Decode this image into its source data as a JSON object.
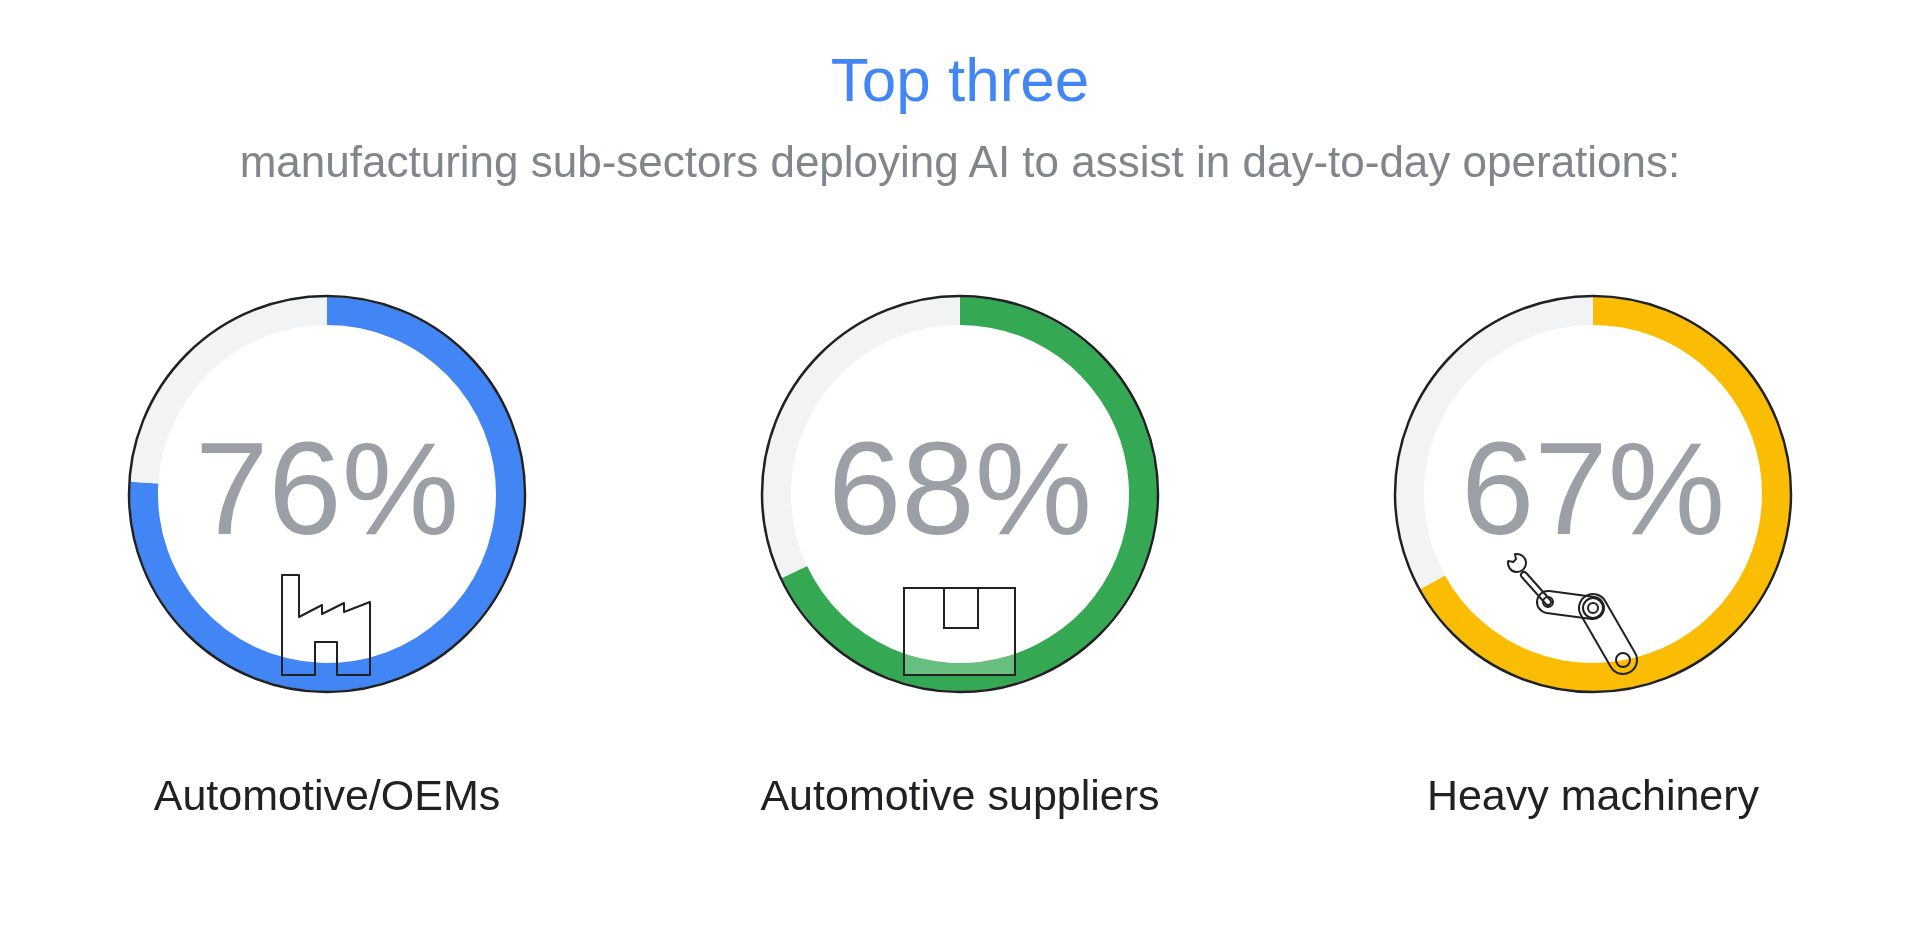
{
  "chart_data": [
    {
      "type": "donut",
      "categories": [
        "Automotive/OEMs",
        null
      ],
      "values": [
        76,
        24
      ],
      "colors": [
        "#4285f4",
        "#f1f3f4"
      ],
      "value_labels": [
        "76%",
        null
      ]
    },
    {
      "type": "donut",
      "title": "Top three",
      "subtitle": "manufacturing sub-sectors deploying AI to assist in day-to-day operations:",
      "categories": [
        "Automotive suppliers",
        null
      ],
      "values": [
        68,
        32
      ],
      "colors": [
        "#34a853",
        "#f1f3f4"
      ],
      "value_labels": [
        "68%",
        null
      ]
    },
    {
      "type": "donut",
      "categories": [
        "Heavy machinery",
        null
      ],
      "values": [
        67,
        33
      ],
      "colors": [
        "#fbbc04",
        "#f1f3f4"
      ],
      "value_labels": [
        "67%",
        null
      ]
    }
  ]
}
